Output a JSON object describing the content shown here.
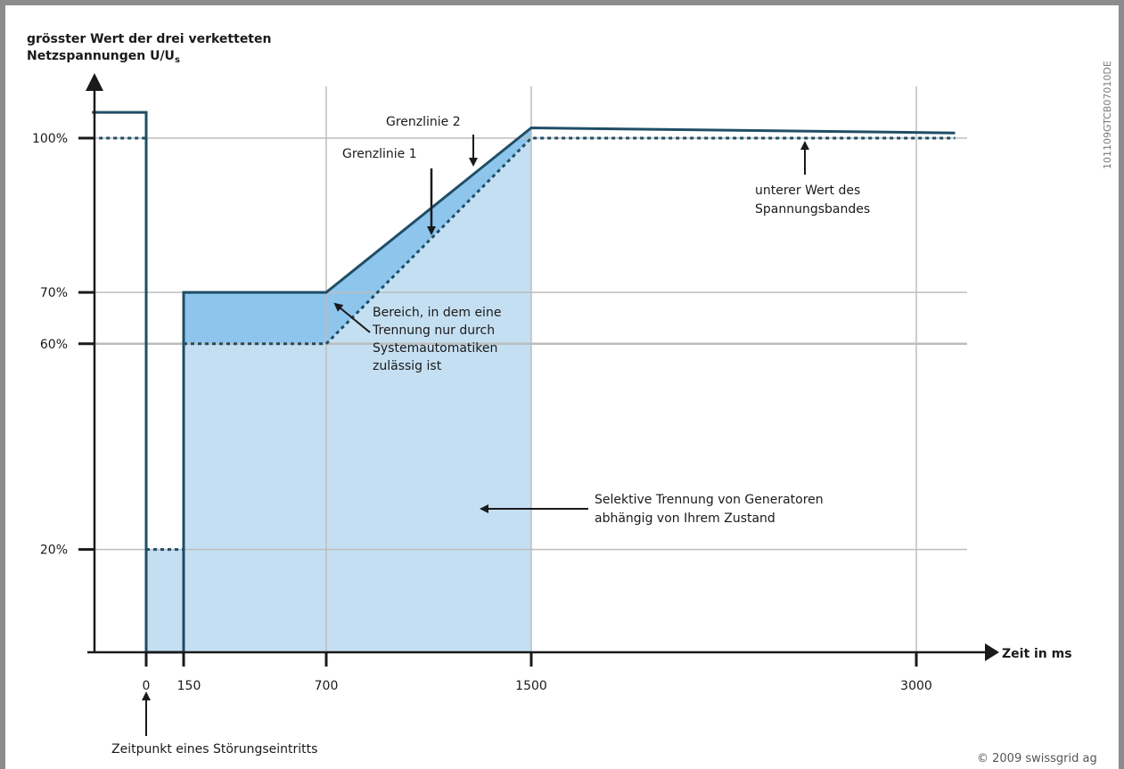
{
  "chart_data": {
    "type": "line",
    "title_line1": "grösster Wert der drei verketteten",
    "title_line2": "Netzspannungen U/U",
    "title_subscript": "s",
    "xlabel": "Zeit in ms",
    "x_ticks": [
      {
        "value": 0,
        "label": "0"
      },
      {
        "value": 150,
        "label": "150"
      },
      {
        "value": 700,
        "label": "700"
      },
      {
        "value": 1500,
        "label": "1500"
      },
      {
        "value": 3000,
        "label": "3000"
      }
    ],
    "y_ticks": [
      {
        "value": 20,
        "label": "20%"
      },
      {
        "value": 60,
        "label": "60%"
      },
      {
        "value": 70,
        "label": "70%"
      },
      {
        "value": 100,
        "label": "100%"
      }
    ],
    "x_range": [
      -200,
      3200
    ],
    "y_range": [
      0,
      110
    ],
    "series": [
      {
        "name": "Grenzlinie 2",
        "style": "solid",
        "points": [
          [
            -190,
            105
          ],
          [
            0,
            105
          ],
          [
            0,
            0
          ],
          [
            150,
            0
          ],
          [
            150,
            70
          ],
          [
            700,
            70
          ],
          [
            1500,
            102
          ],
          [
            3150,
            101
          ]
        ]
      },
      {
        "name": "Grenzlinie 1",
        "style": "dotted",
        "points": [
          [
            150,
            60
          ],
          [
            700,
            60
          ],
          [
            1500,
            100
          ],
          [
            3150,
            100
          ]
        ]
      },
      {
        "style": "dotted",
        "points": [
          [
            -190,
            100
          ],
          [
            0,
            100
          ]
        ]
      },
      {
        "style": "dotted",
        "points": [
          [
            0,
            20
          ],
          [
            150,
            20
          ]
        ]
      },
      {
        "style": "dashdot",
        "points": [
          [
            0,
            100
          ],
          [
            0,
            0
          ]
        ]
      },
      {
        "style": "dashdot",
        "points": [
          [
            150,
            0
          ],
          [
            150,
            60
          ]
        ]
      }
    ],
    "regions": [
      {
        "name": "selective",
        "color": "#c5dff2",
        "points": [
          [
            0,
            20
          ],
          [
            150,
            20
          ],
          [
            150,
            60
          ],
          [
            700,
            60
          ],
          [
            1500,
            100
          ],
          [
            1500,
            0
          ],
          [
            0,
            0
          ]
        ]
      },
      {
        "name": "system",
        "color": "#8ec5ec",
        "points": [
          [
            150,
            60
          ],
          [
            150,
            70
          ],
          [
            700,
            70
          ],
          [
            1500,
            102
          ],
          [
            1500,
            100
          ],
          [
            700,
            60
          ]
        ]
      }
    ],
    "grid": true,
    "annotations": [
      {
        "lines": [
          "Grenzlinie 2"
        ]
      },
      {
        "lines": [
          "Grenzlinie 1"
        ]
      },
      {
        "lines": [
          "unterer Wert des",
          "Spannungsbandes"
        ]
      },
      {
        "lines": [
          "Bereich, in dem eine",
          "Trennung nur durch",
          "Systemautomatiken",
          "zulässig ist"
        ]
      },
      {
        "lines": [
          "Selektive Trennung von Generatoren",
          "abhängig von Ihrem Zustand"
        ]
      },
      {
        "lines": [
          "Zeitpunkt eines Störungseintritts"
        ]
      }
    ],
    "colors": {
      "line": "#1f4e66",
      "grid": "#bdbdbd",
      "frame": "#8c8c8c"
    }
  },
  "side_code": "101109GTCB07010DE",
  "copyright": "© 2009 swissgrid ag"
}
